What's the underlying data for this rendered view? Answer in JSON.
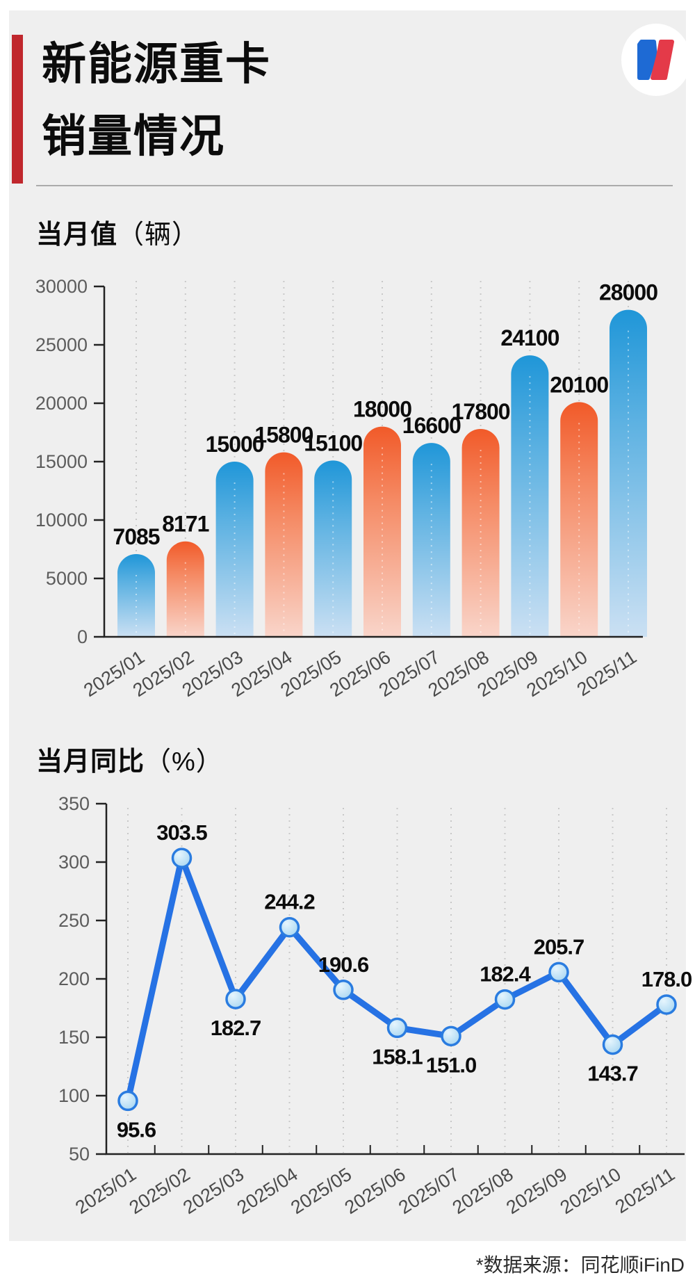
{
  "page": {
    "outer_bg": "#ffffff",
    "card_bg": "#efefef"
  },
  "header": {
    "accent_color": "#c0272d",
    "title_line1": "新能源重卡",
    "title_line2": "销量情况",
    "logo_colors": {
      "blue": "#1e6ad4",
      "red": "#e43a49"
    }
  },
  "footer": {
    "source_note": "*数据来源：同花顺iFinD"
  },
  "chart_data": [
    {
      "type": "bar",
      "title": "当月值",
      "unit_suffix": "（辆）",
      "categories": [
        "2025/01",
        "2025/02",
        "2025/03",
        "2025/04",
        "2025/05",
        "2025/06",
        "2025/07",
        "2025/08",
        "2025/09",
        "2025/10",
        "2025/11"
      ],
      "values": [
        7085,
        8171,
        15000,
        15800,
        15100,
        18000,
        16600,
        17800,
        24100,
        20100,
        28000
      ],
      "yticks": [
        0,
        5000,
        10000,
        15000,
        20000,
        25000,
        30000
      ],
      "ylim": [
        0,
        30000
      ],
      "grid": "vertical-dotted",
      "legend": "none",
      "bar_color_odd_months": "#1f96d8",
      "bar_color_even_months": "#f15a29",
      "bar_style": "rounded-top-gradient-fade-to-light"
    },
    {
      "type": "line",
      "title": "当月同比",
      "unit_suffix": "（%）",
      "categories": [
        "2025/01",
        "2025/02",
        "2025/03",
        "2025/04",
        "2025/05",
        "2025/06",
        "2025/07",
        "2025/08",
        "2025/09",
        "2025/10",
        "2025/11"
      ],
      "values": [
        95.6,
        303.5,
        182.7,
        244.2,
        190.6,
        158.1,
        151.0,
        182.4,
        205.7,
        143.7,
        178.0
      ],
      "label_position": [
        "below",
        "above",
        "below",
        "above",
        "above",
        "below",
        "below",
        "above",
        "above",
        "below",
        "above"
      ],
      "yticks": [
        50,
        100,
        150,
        200,
        250,
        300,
        350
      ],
      "ylim": [
        50,
        350
      ],
      "grid": "vertical-dotted",
      "legend": "none",
      "line_color": "#2672e4",
      "marker_fill": "#aed9f4",
      "marker_stroke": "#2a7ce0"
    }
  ]
}
